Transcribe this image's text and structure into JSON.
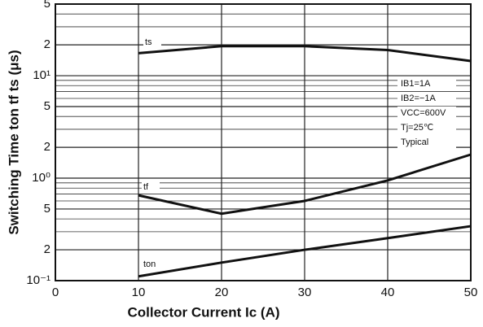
{
  "chart_data": {
    "type": "line",
    "x_label": "Collector Current Ic (A)",
    "y_label": "Switching Time ton tf ts (μs)",
    "x": [
      10,
      20,
      30,
      40,
      50
    ],
    "series": [
      {
        "name": "ts",
        "color": "#111111",
        "values": [
          16.6,
          19.4,
          19.4,
          17.8,
          13.9
        ]
      },
      {
        "name": "tf",
        "color": "#111111",
        "values": [
          0.68,
          0.45,
          0.6,
          0.95,
          1.7
        ]
      },
      {
        "name": "ton",
        "color": "#111111",
        "values": [
          0.11,
          0.15,
          0.2,
          0.26,
          0.34
        ]
      }
    ],
    "xlim": [
      0,
      50
    ],
    "xticks": [
      0,
      10,
      20,
      30,
      40,
      50
    ],
    "ylim": [
      0.1,
      50
    ],
    "log_y": true,
    "yticks": [
      {
        "value": 0.1,
        "label": "10⁻¹"
      },
      {
        "value": 0.2,
        "label": "2"
      },
      {
        "value": 0.5,
        "label": "5"
      },
      {
        "value": 1,
        "label": "10⁰"
      },
      2,
      5,
      {
        "value": 10,
        "label": "10¹"
      },
      {
        "value": 20,
        "label": "2"
      },
      {
        "value": 50,
        "label": "5"
      }
    ],
    "grid": true,
    "minor_grid": true,
    "annotations": [
      "IB1=1A",
      "IB2=−1A",
      "VCC=600V",
      "Tj=25℃",
      "Typical"
    ]
  }
}
